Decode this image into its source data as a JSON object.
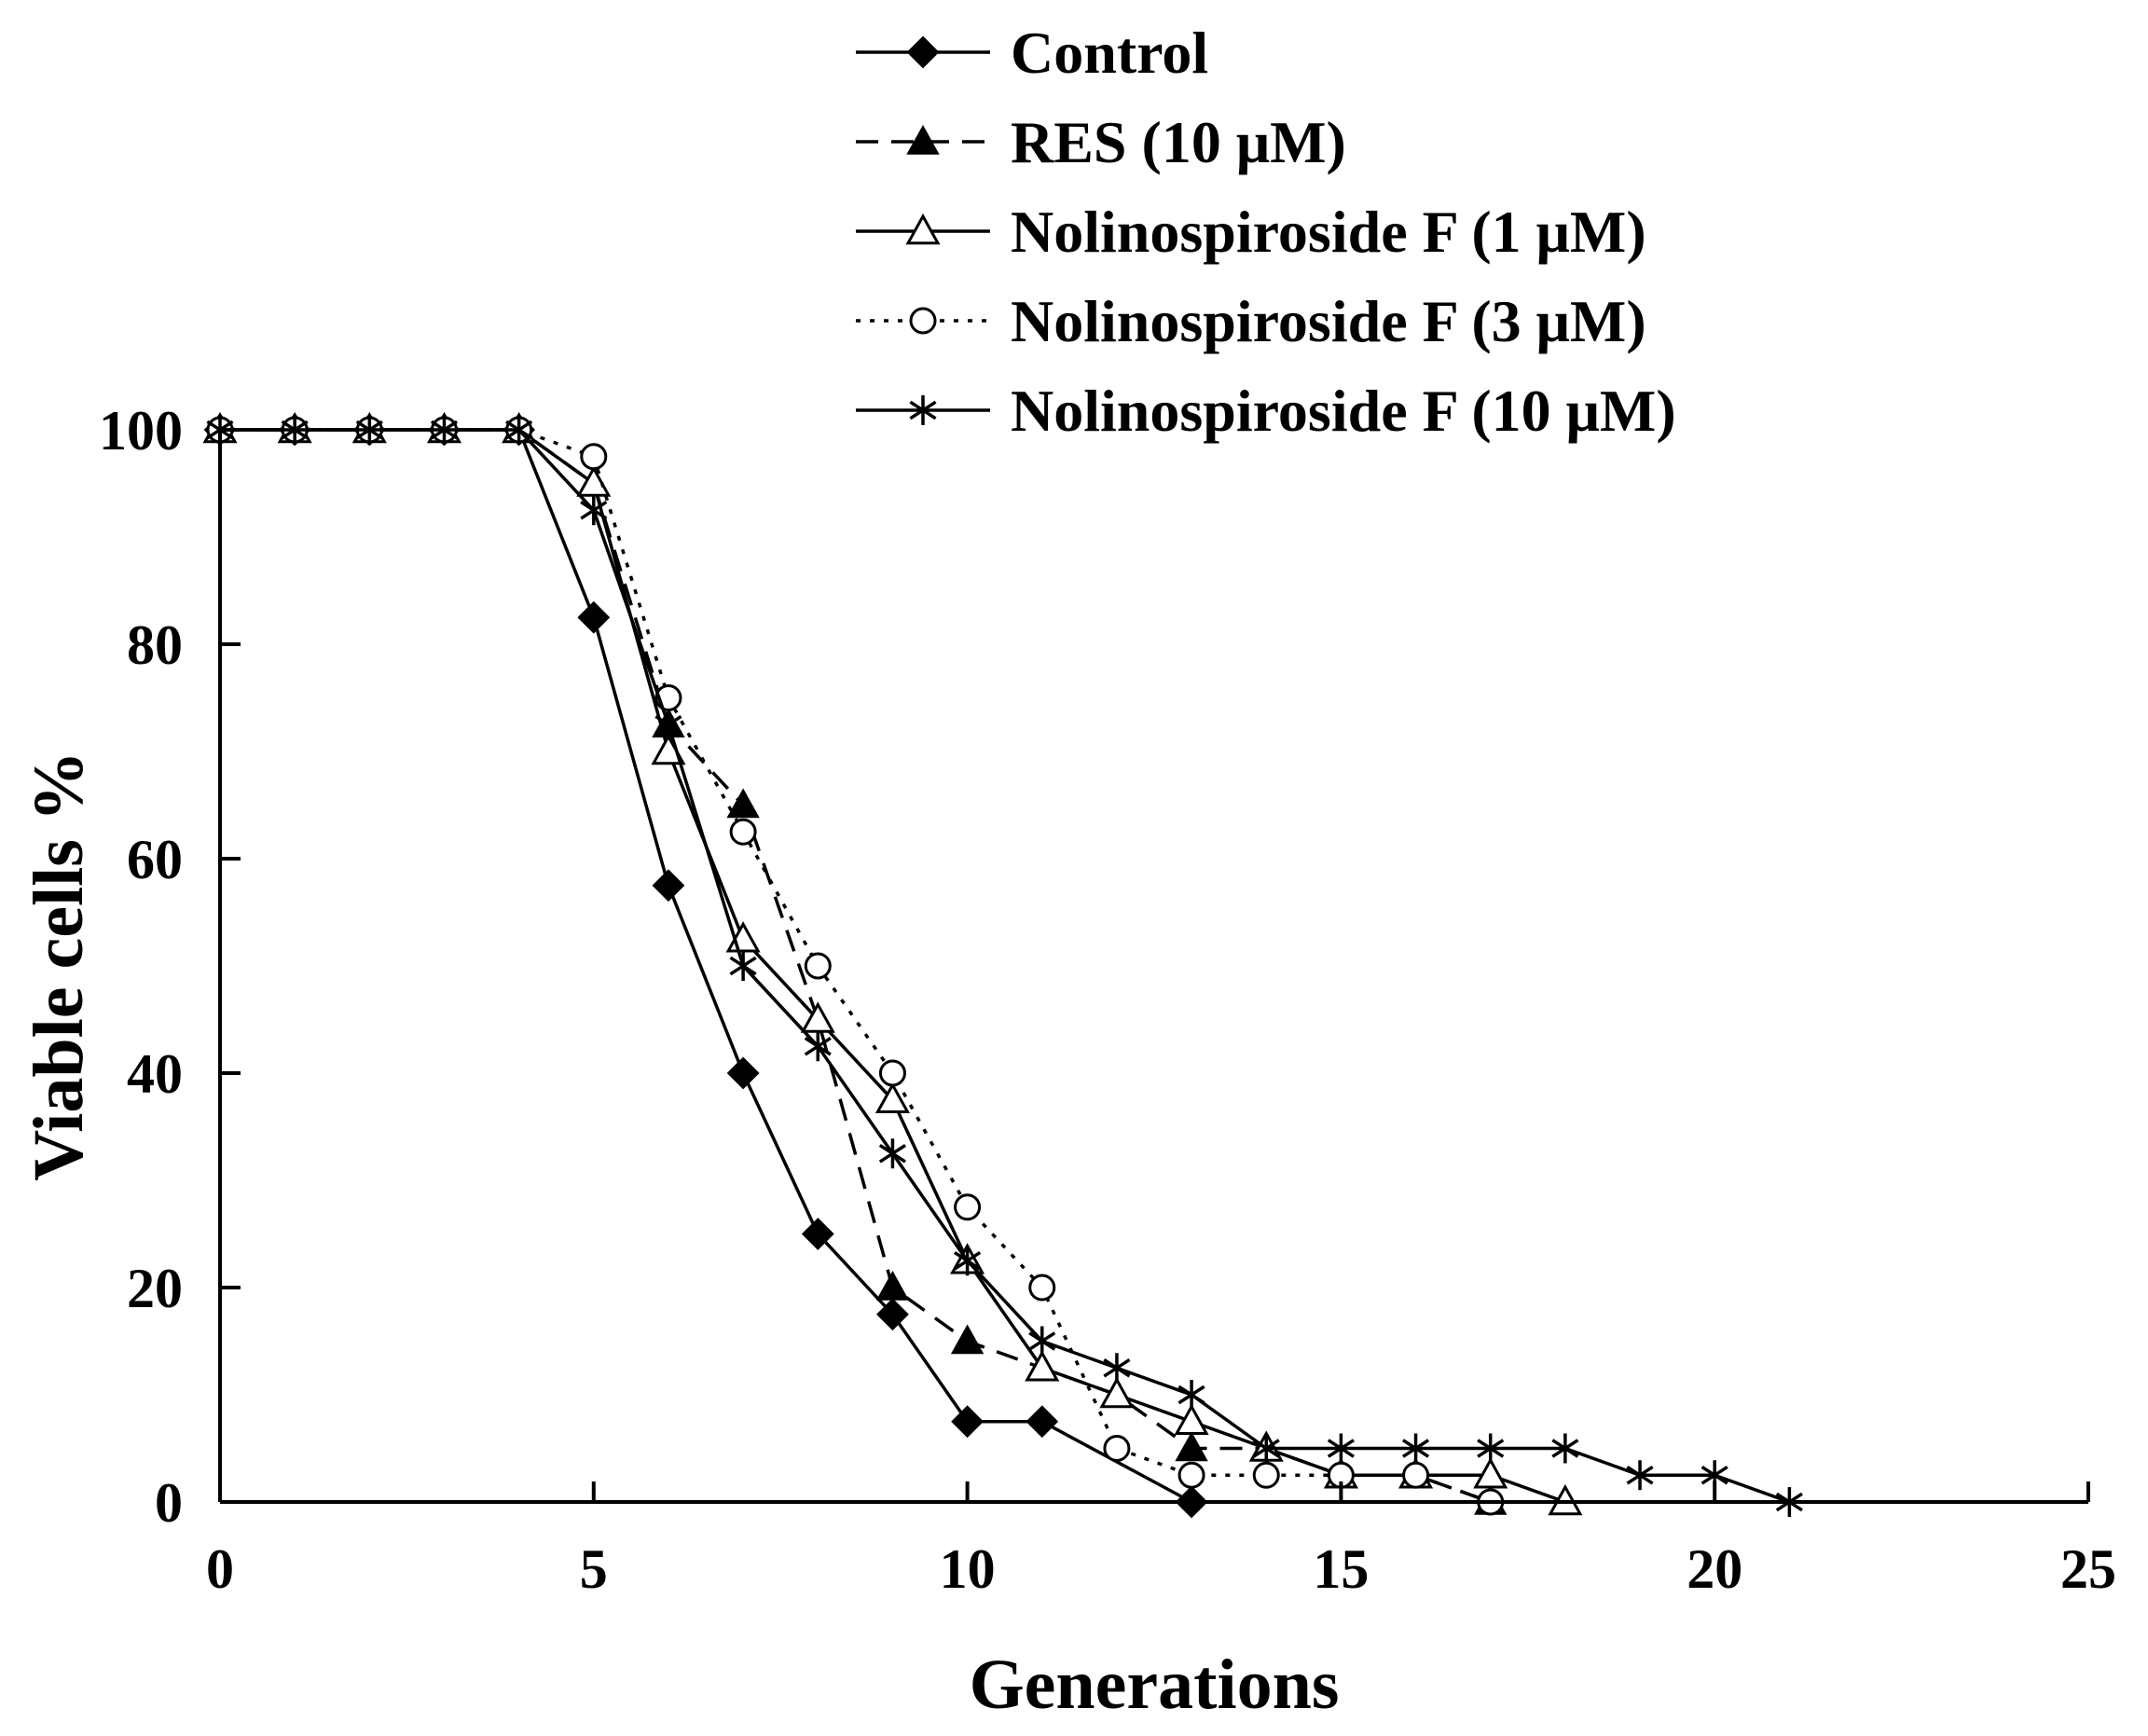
{
  "chart_data": {
    "type": "line",
    "xlabel": "Generations",
    "ylabel": "Viable cells %",
    "xlim": [
      0,
      25
    ],
    "ylim": [
      0,
      100
    ],
    "xticks": [
      0,
      5,
      10,
      15,
      20,
      25
    ],
    "yticks": [
      0,
      20,
      40,
      60,
      80,
      100
    ],
    "grid": false,
    "legend_position": "top",
    "series": [
      {
        "name": "Control",
        "marker": "filled-diamond",
        "line": "solid",
        "x": [
          0,
          1,
          2,
          3,
          4,
          5,
          6,
          7,
          8,
          9,
          10,
          11,
          13
        ],
        "y": [
          100,
          100,
          100,
          100,
          100,
          82.5,
          57.5,
          40,
          25,
          17.5,
          7.5,
          7.5,
          0
        ]
      },
      {
        "name": "RES  (10 μM)",
        "marker": "filled-triangle",
        "line": "dashed",
        "x": [
          0,
          1,
          2,
          3,
          4,
          5,
          6,
          7,
          8,
          9,
          10,
          11,
          12,
          13,
          14,
          15,
          16,
          17
        ],
        "y": [
          100,
          100,
          100,
          100,
          100,
          95,
          72.5,
          65,
          45,
          20,
          15,
          12.5,
          10,
          5,
          5,
          2.5,
          2.5,
          0
        ]
      },
      {
        "name": "Nolinospiroside F (1 μM)",
        "marker": "open-triangle",
        "line": "solid",
        "x": [
          0,
          1,
          2,
          3,
          4,
          5,
          6,
          7,
          8,
          9,
          10,
          11,
          12,
          13,
          14,
          15,
          16,
          17,
          18
        ],
        "y": [
          100,
          100,
          100,
          100,
          100,
          95,
          70,
          52.5,
          45,
          37.5,
          22.5,
          12.5,
          10,
          7.5,
          5,
          2.5,
          2.5,
          2.5,
          0
        ]
      },
      {
        "name": "Nolinospiroside F (3 μM)",
        "marker": "open-circle",
        "line": "dotted",
        "x": [
          0,
          1,
          2,
          3,
          4,
          5,
          6,
          7,
          8,
          9,
          10,
          11,
          12,
          13,
          14,
          15,
          16,
          17
        ],
        "y": [
          100,
          100,
          100,
          100,
          100,
          97.5,
          75,
          62.5,
          50,
          40,
          27.5,
          20,
          5,
          2.5,
          2.5,
          2.5,
          2.5,
          0
        ]
      },
      {
        "name": "Nolinospiroside F (10 μM)",
        "marker": "asterisk",
        "line": "solid",
        "x": [
          0,
          1,
          2,
          3,
          4,
          5,
          6,
          7,
          8,
          9,
          10,
          11,
          12,
          13,
          14,
          15,
          16,
          17,
          18,
          19,
          20,
          21
        ],
        "y": [
          100,
          100,
          100,
          100,
          100,
          92.5,
          72.5,
          50,
          42.5,
          32.5,
          22.5,
          15,
          12.5,
          10,
          5,
          5,
          5,
          5,
          5,
          2.5,
          2.5,
          0
        ]
      }
    ]
  }
}
